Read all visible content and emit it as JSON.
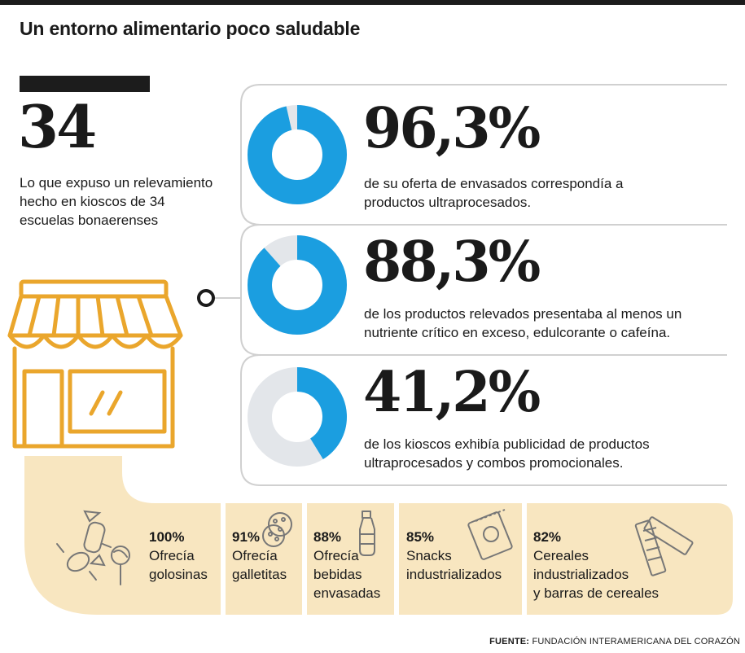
{
  "title": "Un entorno alimentario poco saludable",
  "summary": {
    "number": "34",
    "description": "Lo que expuso un relevamiento hecho en kioscos de 34 escuelas bonaerenses"
  },
  "stats": [
    {
      "percent_label": "96,3%",
      "value": 96.3,
      "text_line1": "de su oferta de envasados correspondía a",
      "text_line2": "productos ultraprocesados."
    },
    {
      "percent_label": "88,3%",
      "value": 88.3,
      "text_line1": "de los productos relevados presentaba al menos un",
      "text_line2": "nutriente crítico en exceso, edulcorante o cafeína."
    },
    {
      "percent_label": "41,2%",
      "value": 41.2,
      "text_line1": "de los kioscos exhibía publicidad de productos",
      "text_line2": "ultraprocesados y combos promocionales."
    }
  ],
  "categories": [
    {
      "percent": "100%",
      "line1": "Ofrecía",
      "line2": "golosinas",
      "line3": "",
      "icon": "candy-icon"
    },
    {
      "percent": "91%",
      "line1": "Ofrecía",
      "line2": "galletitas",
      "line3": "",
      "icon": "cookie-icon"
    },
    {
      "percent": "88%",
      "line1": "Ofrecía",
      "line2": "bebidas",
      "line3": "envasadas",
      "icon": "bottle-icon"
    },
    {
      "percent": "85%",
      "line1": "Snacks",
      "line2": "industrializados",
      "line3": "",
      "icon": "snack-bag-icon"
    },
    {
      "percent": "82%",
      "line1": "Cereales",
      "line2": "industrializados",
      "line3": "y barras de cereales",
      "icon": "cereal-bar-icon"
    }
  ],
  "source": {
    "label": "FUENTE:",
    "text": "FUNDACIÓN INTERAMERICANA DEL CORAZÓN"
  },
  "colors": {
    "accent_blue": "#1b9ee0",
    "donut_bg": "#e3e6ea",
    "beige": "#f8e6c0",
    "gold": "#eaa62c",
    "dark": "#1c1c1c"
  }
}
